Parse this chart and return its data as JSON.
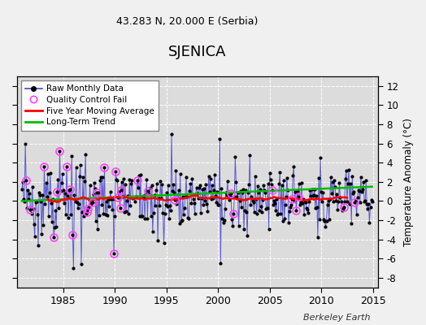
{
  "title": "SJENICA",
  "subtitle": "43.283 N, 20.000 E (Serbia)",
  "ylabel": "Temperature Anomaly (°C)",
  "watermark": "Berkeley Earth",
  "ylim": [
    -9,
    13
  ],
  "yticks": [
    -8,
    -6,
    -4,
    -2,
    0,
    2,
    4,
    6,
    8,
    10,
    12
  ],
  "xlim": [
    1980.5,
    2015.5
  ],
  "xticks": [
    1985,
    1990,
    1995,
    2000,
    2005,
    2010,
    2015
  ],
  "start_year": 1981,
  "end_year": 2014,
  "raw_line_color": "#4444cc",
  "raw_dot_color": "#000000",
  "ma_color": "#ff0000",
  "trend_color": "#00bb00",
  "qc_color": "#ff44ff",
  "plot_bg": "#dcdcdc",
  "fig_bg": "#f0f0f0"
}
